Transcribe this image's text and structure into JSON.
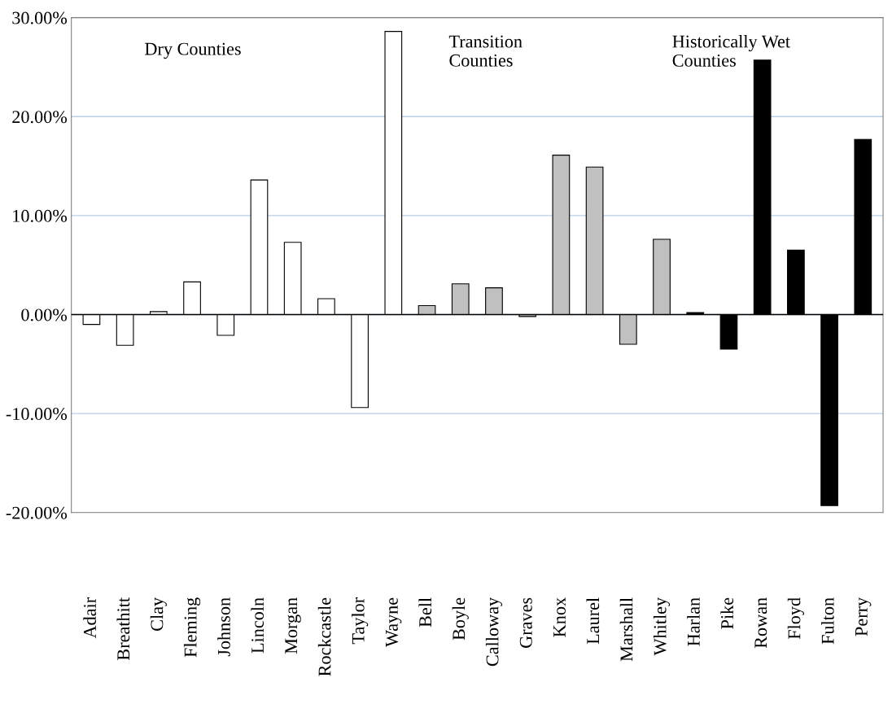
{
  "chart_data": {
    "type": "bar",
    "categories": [
      "Adair",
      "Breathitt",
      "Clay",
      "Fleming",
      "Johnson",
      "Lincoln",
      "Morgan",
      "Rockcastle",
      "Taylor",
      "Wayne",
      "Bell",
      "Boyle",
      "Calloway",
      "Graves",
      "Knox",
      "Laurel",
      "Marshall",
      "Whitley",
      "Harlan",
      "Pike",
      "Rowan",
      "Floyd",
      "Fulton",
      "Perry"
    ],
    "values": [
      -1.0,
      -3.1,
      0.3,
      3.3,
      -2.1,
      13.6,
      7.3,
      1.6,
      -9.4,
      28.6,
      0.9,
      3.1,
      2.7,
      -0.2,
      16.1,
      14.9,
      -3.0,
      7.6,
      0.2,
      -3.5,
      25.7,
      6.5,
      -19.3,
      17.7
    ],
    "colors": [
      "#ffffff",
      "#ffffff",
      "#ffffff",
      "#ffffff",
      "#ffffff",
      "#ffffff",
      "#ffffff",
      "#ffffff",
      "#ffffff",
      "#ffffff",
      "#c0c0c0",
      "#c0c0c0",
      "#c0c0c0",
      "#c0c0c0",
      "#c0c0c0",
      "#c0c0c0",
      "#c0c0c0",
      "#c0c0c0",
      "#000000",
      "#000000",
      "#000000",
      "#000000",
      "#000000",
      "#000000"
    ],
    "annotations": [
      "Dry Counties",
      "Transition\nCounties",
      "Historically Wet\nCounties"
    ],
    "ylim": [
      -20,
      30
    ],
    "yticks": [
      {
        "value": -20,
        "label": "-20.00%"
      },
      {
        "value": -10,
        "label": "-10.00%"
      },
      {
        "value": 0,
        "label": "0.00%"
      },
      {
        "value": 10,
        "label": "10.00%"
      },
      {
        "value": 20,
        "label": "20.00%"
      },
      {
        "value": 30,
        "label": "30.00%"
      }
    ],
    "grid": "y",
    "legend": false
  }
}
